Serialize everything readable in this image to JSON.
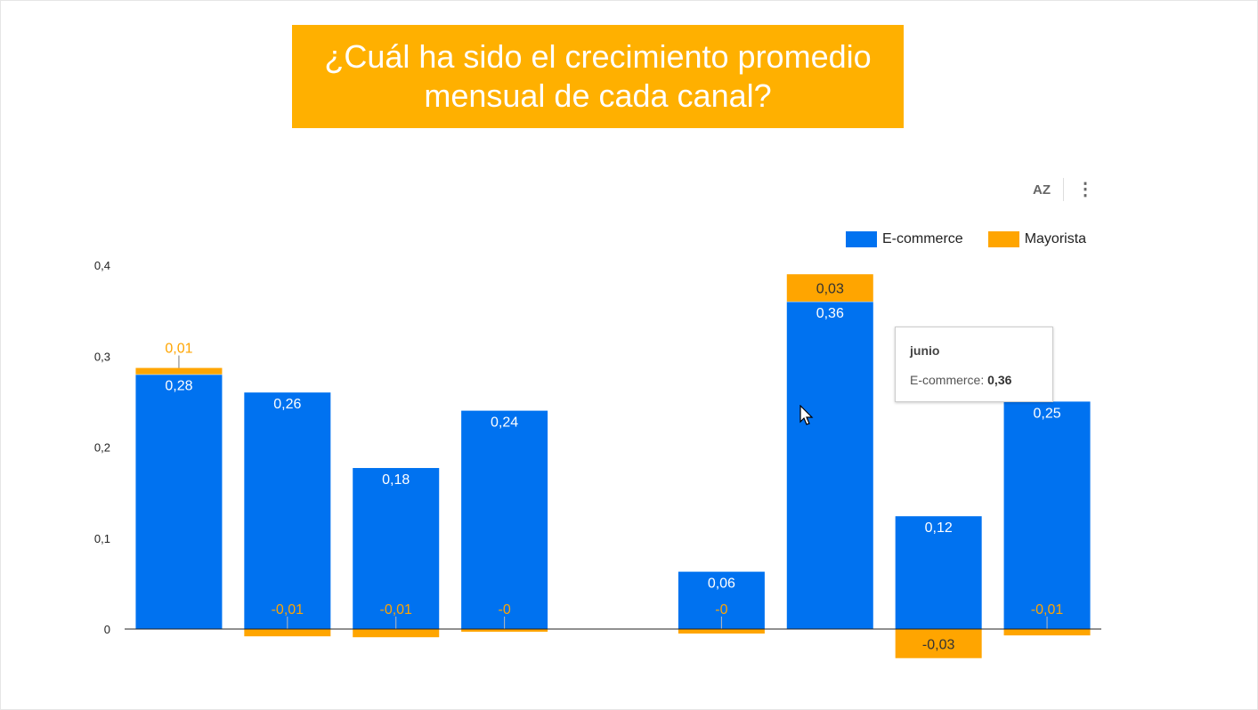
{
  "header": {
    "title": "¿Cuál ha sido el crecimiento promedio mensual de cada canal?"
  },
  "toolbar": {
    "sort_label": "AZ",
    "more_label": "⋮"
  },
  "tooltip": {
    "category": "junio",
    "series": "E-commerce",
    "value": "0,36"
  },
  "colors": {
    "ecommerce": "#0072f0",
    "mayorista": "#ffa500",
    "title_bg": "#ffb000"
  },
  "chart_data": {
    "type": "bar",
    "stacked": true,
    "title": "¿Cuál ha sido el crecimiento promedio mensual de cada canal?",
    "categories": [
      "",
      "",
      "",
      "",
      "",
      "junio",
      "",
      ""
    ],
    "slots": 9,
    "empty_slot_index": 4,
    "series": [
      {
        "name": "E-commerce",
        "values": [
          0.28,
          0.26,
          0.177,
          0.24,
          0.063,
          0.36,
          0.124,
          0.25
        ]
      },
      {
        "name": "Mayorista",
        "values": [
          0.007,
          -0.008,
          -0.009,
          -0.003,
          -0.005,
          0.03,
          -0.032,
          -0.007
        ]
      }
    ],
    "ylim": [
      -0.04,
      0.4
    ],
    "yticks": [
      0,
      0.1,
      0.2,
      0.3,
      0.4
    ],
    "ytick_labels": [
      "0",
      "0,1",
      "0,2",
      "0,3",
      "0,4"
    ],
    "legend_position": "top-right",
    "grid": false,
    "xlabel": "",
    "ylabel": ""
  }
}
